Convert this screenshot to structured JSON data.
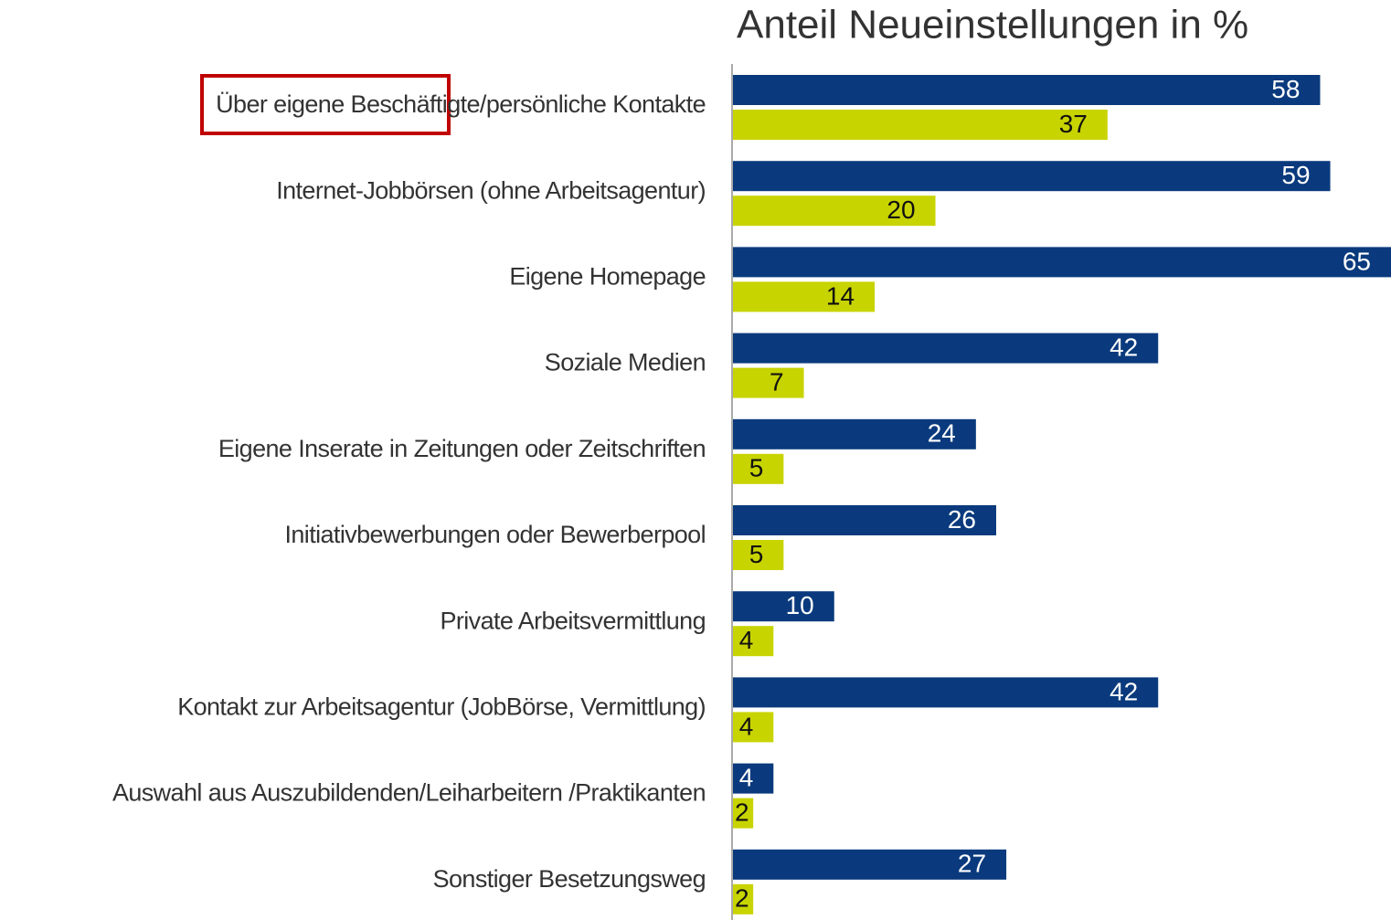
{
  "chart_data": {
    "type": "hbar",
    "title": "Anteil Neueinstellungen in %",
    "categories": [
      "Über eigene Beschäftigte/persönliche Kontakte",
      "Internet-Jobbörsen (ohne Arbeitsagentur)",
      "Eigene Homepage",
      "Soziale Medien",
      "Eigene Inserate in Zeitungen oder Zeitschriften",
      "Initiativbewerbungen oder Bewerberpool",
      "Private Arbeitsvermittlung",
      "Kontakt zur Arbeitsagentur (JobBörse, Vermittlung)",
      "Auswahl aus Auszubildenden/Leiharbeitern /Praktikanten",
      "Sonstiger Besetzungsweg"
    ],
    "series": [
      {
        "color": "#0a3a7d",
        "values": [
          58,
          59,
          65,
          42,
          24,
          26,
          10,
          42,
          4,
          27
        ]
      },
      {
        "color": "#c8d400",
        "values": [
          37,
          20,
          14,
          7,
          5,
          5,
          4,
          4,
          2,
          2
        ]
      }
    ],
    "xlim": [
      0,
      65
    ]
  }
}
